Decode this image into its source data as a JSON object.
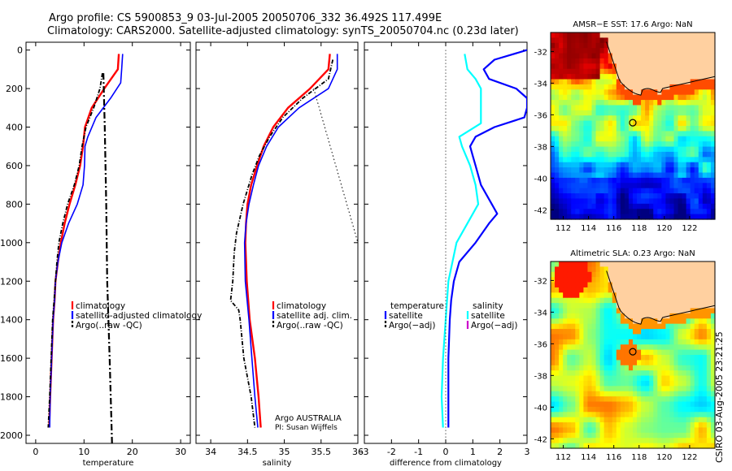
{
  "header": {
    "line1": "Argo profile: CS 5900853_9 03-Jul-2005 20050706_332 36.492S 117.499E",
    "line2": "Climatology: CARS2000. Satellite-adjusted climatology: synTS_20050704.nc (0.23d later)"
  },
  "side_label": "CSIRO 03-Aug-2005 23:21:25",
  "colors": {
    "climatology": "#ff0000",
    "satellite": "#0000ff",
    "argo": "#000000",
    "temp_diff": "#00ffff",
    "salt_argo": "#cc00cc",
    "land": "#ffd0a0"
  },
  "chart_data": [
    {
      "type": "line",
      "xlabel": "temperature",
      "xlim": [
        -2,
        32
      ],
      "ylim": [
        2050,
        0
      ],
      "x_ticks": [
        "0",
        "10",
        "20",
        "30"
      ],
      "y_ticks": [
        "0",
        "200",
        "400",
        "600",
        "800",
        "1000",
        "1200",
        "1400",
        "1600",
        "1800",
        "2000"
      ],
      "legend": [
        "climatology",
        "satellite-adjusted climatology",
        "Argo(..raw -QC)"
      ],
      "series": [
        {
          "name": "climatology",
          "color": "#ff0000",
          "width": 2.4,
          "dash": "",
          "depth": [
            20,
            100,
            200,
            300,
            400,
            500,
            600,
            700,
            800,
            900,
            1000,
            1100,
            1200,
            1300,
            1400,
            1600,
            1800,
            1960
          ],
          "value": [
            17.2,
            17.0,
            14.2,
            11.6,
            10.2,
            9.8,
            9.2,
            8.2,
            7.0,
            6.0,
            5.2,
            4.6,
            4.1,
            3.9,
            3.6,
            3.3,
            3.0,
            2.8
          ]
        },
        {
          "name": "satellite-adjusted climatology",
          "color": "#0000ff",
          "width": 1.6,
          "dash": "",
          "depth": [
            20,
            100,
            170,
            250,
            350,
            450,
            500,
            600,
            700,
            800,
            900,
            1000,
            1100,
            1200,
            1300,
            1400,
            1600,
            1800,
            1960
          ],
          "value": [
            18.0,
            17.8,
            17.6,
            15.5,
            12.5,
            10.8,
            10.2,
            10.1,
            9.8,
            8.6,
            6.8,
            5.4,
            4.6,
            4.1,
            3.9,
            3.6,
            3.3,
            3.0,
            2.9
          ]
        },
        {
          "name": "Argo(..raw -QC)",
          "color": "#000000",
          "width": 1.8,
          "dash": "5,2,1,2",
          "depth": [
            120,
            200,
            300,
            400,
            500,
            600,
            700,
            800,
            900,
            1000,
            1100,
            1200,
            1300,
            1400,
            1600,
            1800,
            1960
          ],
          "value": [
            13.8,
            13.3,
            12.0,
            10.4,
            9.6,
            9.0,
            8.0,
            6.6,
            5.6,
            4.8,
            4.4,
            4.1,
            3.8,
            3.5,
            3.2,
            2.9,
            2.6
          ]
        },
        {
          "name": "raw",
          "color": "#000000",
          "width": 2.2,
          "dash": "8,3,2,3",
          "depth": [
            120,
            400,
            800,
            1200,
            1600,
            2050
          ],
          "value": [
            14.0,
            14.3,
            14.6,
            14.8,
            15.3,
            15.8
          ]
        }
      ]
    },
    {
      "type": "line",
      "xlabel": "salinity",
      "xlim": [
        33.8,
        36
      ],
      "ylim": [
        2050,
        0
      ],
      "x_ticks": [
        "34",
        "34.5",
        "35",
        "35.5",
        "36"
      ],
      "legend": [
        "climatology",
        "satellite adj. clim.",
        "Argo(..raw -QC)"
      ],
      "annotation": [
        "Argo AUSTRALIA",
        "PI: Susan Wijffels"
      ],
      "series": [
        {
          "name": "climatology",
          "color": "#ff0000",
          "width": 2.4,
          "dash": "",
          "depth": [
            20,
            100,
            200,
            300,
            400,
            500,
            600,
            700,
            800,
            900,
            1000,
            1200,
            1400,
            1600,
            1800,
            1960
          ],
          "value": [
            35.62,
            35.6,
            35.35,
            35.05,
            34.85,
            34.72,
            34.63,
            34.55,
            34.5,
            34.48,
            34.47,
            34.49,
            34.53,
            34.6,
            34.65,
            34.68
          ]
        },
        {
          "name": "satellite adj. clim.",
          "color": "#0000ff",
          "width": 1.6,
          "dash": "",
          "depth": [
            20,
            100,
            200,
            300,
            400,
            500,
            600,
            700,
            800,
            900,
            1000,
            1200,
            1400,
            1600,
            1800,
            1960
          ],
          "value": [
            35.72,
            35.72,
            35.6,
            35.2,
            34.92,
            34.76,
            34.65,
            34.58,
            34.52,
            34.48,
            34.46,
            34.47,
            34.52,
            34.56,
            34.6,
            34.64
          ]
        },
        {
          "name": "Argo(..raw -QC)",
          "color": "#000000",
          "width": 1.8,
          "dash": "5,2,1,2",
          "depth": [
            50,
            150,
            250,
            350,
            450,
            550,
            650,
            800,
            950,
            1050,
            1200,
            1300,
            1350,
            1400,
            1600,
            1800,
            1960
          ],
          "value": [
            35.66,
            35.6,
            35.25,
            34.98,
            34.8,
            34.66,
            34.56,
            34.44,
            34.35,
            34.32,
            34.3,
            34.27,
            34.38,
            34.4,
            34.45,
            34.55,
            34.6
          ]
        },
        {
          "name": "raw",
          "color": "#000000",
          "width": 1,
          "dash": "1.5,3",
          "depth": [
            200,
            1000
          ],
          "value": [
            35.4,
            36.0
          ]
        }
      ]
    },
    {
      "type": "line",
      "xlabel": "difference from climatology",
      "xlim": [
        -3,
        3
      ],
      "ylim": [
        2050,
        0
      ],
      "x_ticks": [
        "-3",
        "-2",
        "-1",
        "0",
        "1",
        "2",
        "3"
      ],
      "legend_left": [
        "temperature",
        "satellite",
        "Argo(−adj)"
      ],
      "legend_right": [
        "salinity",
        "satellite",
        "Argo(−adj)"
      ],
      "series": [
        {
          "name": "temperature satellite",
          "color": "#0000ff",
          "width": 2.2,
          "dash": "",
          "depth": [
            0,
            50,
            100,
            150,
            200,
            250,
            300,
            350,
            400,
            450,
            500,
            550,
            600,
            700,
            800,
            850,
            900,
            1000,
            1100,
            1200,
            1300,
            1400,
            1600,
            1800,
            1960
          ],
          "value": [
            3.0,
            1.8,
            1.4,
            1.6,
            2.6,
            3.0,
            3.0,
            2.9,
            1.8,
            1.1,
            0.9,
            1.0,
            1.1,
            1.3,
            1.7,
            1.9,
            1.6,
            1.1,
            0.5,
            0.3,
            0.2,
            0.15,
            0.1,
            0.1,
            0.1
          ]
        },
        {
          "name": "salinity satellite",
          "color": "#00ffff",
          "width": 2.2,
          "dash": "",
          "depth": [
            20,
            100,
            150,
            200,
            300,
            380,
            450,
            500,
            600,
            700,
            800,
            900,
            1000,
            1200,
            1400,
            1600,
            1800,
            1960
          ],
          "value": [
            0.7,
            0.8,
            1.1,
            1.3,
            1.3,
            1.3,
            0.5,
            0.6,
            0.9,
            1.1,
            1.2,
            0.8,
            0.4,
            0.1,
            0.0,
            -0.1,
            -0.15,
            -0.1
          ]
        },
        {
          "name": "zero",
          "color": "#000000",
          "width": 1,
          "dash": "1,3",
          "depth": [
            0,
            2050
          ],
          "value": [
            0,
            0
          ]
        }
      ]
    },
    {
      "type": "heatmap",
      "title": "AMSR−E SST: 17.6 Argo: NaN",
      "x_ticks": [
        "112",
        "114",
        "116",
        "118",
        "120",
        "122"
      ],
      "y_ticks": [
        "-32",
        "-34",
        "-36",
        "-38",
        "-40",
        "-42"
      ],
      "lon_range": [
        111,
        124
      ],
      "lat_range": [
        -42.6,
        -30.8
      ],
      "marker": {
        "lon": 117.5,
        "lat": -36.5
      }
    },
    {
      "type": "heatmap",
      "title": "Altimetric SLA: 0.23 Argo: NaN",
      "x_ticks": [
        "112",
        "114",
        "116",
        "118",
        "120",
        "122"
      ],
      "y_ticks": [
        "-32",
        "-34",
        "-36",
        "-38",
        "-40",
        "-42"
      ],
      "lon_range": [
        111,
        124
      ],
      "lat_range": [
        -42.6,
        -30.8
      ],
      "marker": {
        "lon": 117.5,
        "lat": -36.5
      }
    }
  ]
}
